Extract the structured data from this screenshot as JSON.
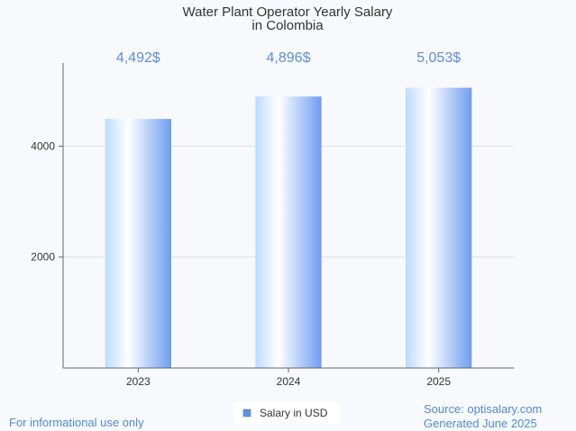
{
  "chart_data": {
    "type": "bar",
    "title_lines": [
      "Water Plant Operator Yearly Salary",
      "in Colombia"
    ],
    "categories": [
      "2023",
      "2024",
      "2025"
    ],
    "series": [
      {
        "name": "Salary in USD",
        "values": [
          4492,
          4896,
          5053
        ],
        "value_labels": [
          "4,492$",
          "4,896$",
          "5,053$"
        ]
      }
    ],
    "ylim": [
      0,
      5500
    ],
    "yticks": [
      2000,
      4000
    ],
    "ytick_labels": [
      "2000",
      "4000"
    ],
    "grid": true,
    "legend_position": "bottom-center",
    "colors": {
      "bar_edge": "#6d9ef0",
      "bar_light": "#ffffff",
      "bar_mid": "#bcdcff",
      "label": "#5b8fd9",
      "legend_swatch": "#5f95e0"
    }
  },
  "footer": {
    "note": "For informational use only",
    "source": "Source: optisalary.com",
    "generated": "Generated June 2025"
  }
}
